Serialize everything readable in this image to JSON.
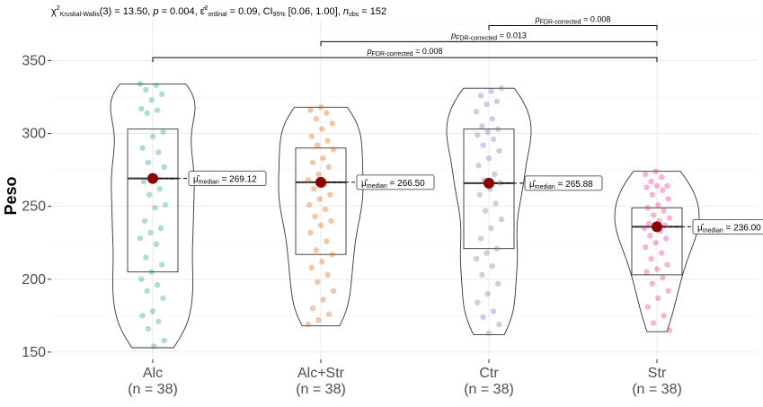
{
  "chart_data": {
    "type": "violin-box",
    "subtitle": "χ²Kruskal-Wallis(3) = 13.50, p = 0.004, ε̂²ordinal = 0.09, CI95% [0.06, 1.00], nobs = 152",
    "subtitle_parts": {
      "stat_symbol": "χ",
      "stat_sup": "2",
      "stat_sub": "Kruskal-Wallis",
      "stat_rest": "(3) = 13.50, ",
      "p_symbol": "p",
      "p_rest": " = 0.004, ",
      "effect_symbol": "ε̂",
      "effect_sup": "2",
      "effect_sub": "ordinal",
      "effect_rest": " = 0.09, CI",
      "ci_sub": "95%",
      "ci_rest": " [0.06, 1.00], ",
      "n_symbol": "n",
      "n_sub": "obs",
      "n_rest": " = 152"
    },
    "ylabel": "Peso",
    "ylim": [
      145,
      378
    ],
    "yticks": [
      150,
      200,
      250,
      300,
      350
    ],
    "categories": [
      "Alc",
      "Alc+Str",
      "Ctr",
      "Str"
    ],
    "category_counts": [
      "(n = 38)",
      "(n = 38)",
      "(n = 38)",
      "(n = 38)"
    ],
    "grid": true,
    "groups": [
      {
        "name": "Alc",
        "color": "#1b9e77",
        "min": 153,
        "q1": 205,
        "median": 269.12,
        "q3": 303,
        "max": 334,
        "median_label": "269.12",
        "points": [
          334,
          333,
          330,
          327,
          323,
          317,
          316,
          314,
          301,
          298,
          290,
          287,
          280,
          277,
          270,
          267,
          262,
          258,
          251,
          249,
          240,
          235,
          232,
          228,
          224,
          215,
          210,
          205,
          200,
          196,
          192,
          187,
          178,
          175,
          171,
          166,
          158,
          154
        ]
      },
      {
        "name": "Alc+Str",
        "color": "#d95f02",
        "min": 168,
        "q1": 217,
        "median": 266.5,
        "q3": 290,
        "max": 318,
        "median_label": "266.50",
        "points": [
          318,
          316,
          314,
          310,
          307,
          303,
          298,
          295,
          292,
          289,
          283,
          280,
          277,
          272,
          268,
          265,
          262,
          258,
          255,
          251,
          248,
          243,
          240,
          237,
          232,
          226,
          220,
          217,
          212,
          208,
          203,
          198,
          192,
          186,
          180,
          176,
          172,
          169
        ]
      },
      {
        "name": "Ctr",
        "color": "#7570b3",
        "min": 162,
        "q1": 221,
        "median": 265.88,
        "q3": 303,
        "max": 331,
        "median_label": "265.88",
        "points": [
          331,
          329,
          326,
          322,
          320,
          315,
          310,
          305,
          303,
          301,
          299,
          296,
          292,
          288,
          283,
          278,
          272,
          268,
          266,
          262,
          258,
          252,
          247,
          241,
          235,
          228,
          221,
          218,
          214,
          209,
          203,
          197,
          190,
          184,
          178,
          174,
          169,
          163
        ]
      },
      {
        "name": "Str",
        "color": "#e7298a",
        "min": 164,
        "q1": 203,
        "median": 236.0,
        "q3": 249,
        "max": 274,
        "median_label": "236.00",
        "points": [
          274,
          272,
          270,
          267,
          264,
          264,
          263,
          261,
          258,
          255,
          251,
          249,
          247,
          244,
          242,
          240,
          238,
          237,
          236,
          235,
          233,
          230,
          228,
          225,
          222,
          218,
          214,
          210,
          207,
          205,
          201,
          197,
          192,
          187,
          181,
          175,
          170,
          165
        ]
      }
    ],
    "median_prefix": "μ̂",
    "median_sub": "median",
    "median_eq": " = ",
    "comparisons": [
      {
        "from": 0,
        "to": 3,
        "y": 352,
        "p_symbol": "p",
        "p_sub": "FDR-corrected",
        "label": " = 0.008"
      },
      {
        "from": 1,
        "to": 3,
        "y": 363,
        "p_symbol": "p",
        "p_sub": "FDR-corrected",
        "label": " = 0.013"
      },
      {
        "from": 2,
        "to": 3,
        "y": 374,
        "p_symbol": "p",
        "p_sub": "FDR-corrected",
        "label": " = 0.008"
      }
    ]
  }
}
